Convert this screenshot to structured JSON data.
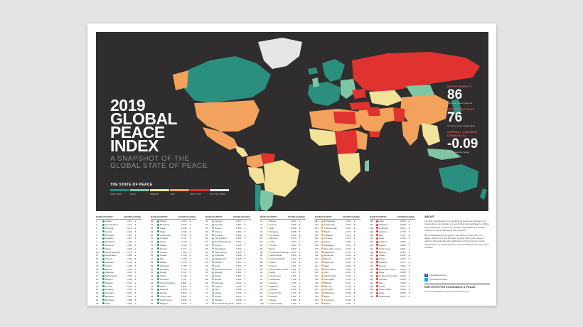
{
  "poster": {
    "title_lines": [
      "2019",
      "GLOBAL",
      "PEACE",
      "INDEX"
    ],
    "subtitle_lines": [
      "A SNAPSHOT OF THE",
      "GLOBAL STATE OF PEACE"
    ],
    "legend_title": "THE STATE OF PEACE",
    "legend": [
      {
        "label": "VERY HIGH",
        "color": "#2a8f7f"
      },
      {
        "label": "HIGH",
        "color": "#7ec6a4"
      },
      {
        "label": "MEDIUM",
        "color": "#f3e29a"
      },
      {
        "label": "LOW",
        "color": "#f2a25c"
      },
      {
        "label": "VERY LOW",
        "color": "#e0322e"
      },
      {
        "label": "NOT INCLUDED",
        "color": "#e6e6e6"
      }
    ]
  },
  "stats": [
    {
      "heading": "IMPROVEMENTS",
      "value": "86",
      "note": "countries' peace improved"
    },
    {
      "heading": "DETERIORATIONS",
      "value": "76",
      "note": "countries' peace deteriorated"
    },
    {
      "heading": "OVERALL AVERAGE CHANGE (%)",
      "value": "-0.09",
      "note": "overall average change"
    }
  ],
  "table": {
    "headers": {
      "rank": "RANK",
      "country": "COUNTRY",
      "score": "SCORE",
      "change": "CHANGE"
    },
    "columns": [
      [
        [
          "1",
          "Iceland",
          "1.072"
        ],
        [
          "2",
          "New Zealand",
          "1.221"
        ],
        [
          "3",
          "Portugal",
          "1.274"
        ],
        [
          "4",
          "Austria",
          "1.291"
        ],
        [
          "5",
          "Denmark",
          "1.316"
        ],
        [
          "6",
          "Canada",
          "1.327"
        ],
        [
          "7",
          "Singapore",
          "1.347"
        ],
        [
          "8",
          "Slovenia",
          "1.355"
        ],
        [
          "9",
          "Japan",
          "1.369"
        ],
        [
          "10",
          "Czech Republic",
          "1.375"
        ],
        [
          "11",
          "Switzerland",
          "1.383"
        ],
        [
          "12",
          "Ireland",
          "1.390"
        ],
        [
          "13",
          "Australia",
          "1.419"
        ],
        [
          "14",
          "Finland",
          "1.488"
        ],
        [
          "15",
          "Bhutan",
          "1.506"
        ],
        [
          "16",
          "Malaysia",
          "1.529"
        ],
        [
          "17",
          "Netherlands",
          "1.530"
        ],
        [
          "18",
          "Belgium",
          "1.533"
        ],
        [
          "19",
          "Sweden",
          "1.533"
        ],
        [
          "20",
          "Norway",
          "1.536"
        ],
        [
          "21",
          "Hungary",
          "1.540"
        ],
        [
          "22",
          "Germany",
          "1.547"
        ],
        [
          "23",
          "Mauritius",
          "1.562"
        ],
        [
          "24",
          "Romania",
          "1.566"
        ],
        [
          "25",
          "Chile",
          "1.634"
        ]
      ],
      [
        [
          "26",
          "Poland",
          "1.654"
        ],
        [
          "27",
          "Botswana",
          "1.676"
        ],
        [
          "28",
          "Qatar",
          "1.696"
        ],
        [
          "29",
          "Spain",
          "1.699"
        ],
        [
          "30",
          "Costa Rica",
          "1.706"
        ],
        [
          "31",
          "Uruguay",
          "1.711"
        ],
        [
          "32",
          "Latvia",
          "1.718"
        ],
        [
          "33",
          "Taiwan",
          "1.725"
        ],
        [
          "34",
          "Estonia",
          "1.727"
        ],
        [
          "35",
          "Croatia",
          "1.729"
        ],
        [
          "36",
          "Kuwait",
          "1.739"
        ],
        [
          "37",
          "Italy",
          "1.754"
        ],
        [
          "38",
          "Malawi",
          "1.779"
        ],
        [
          "39",
          "Indonesia",
          "1.785"
        ],
        [
          "40",
          "Mongolia",
          "1.790"
        ],
        [
          "41",
          "Kuwait",
          "1.791"
        ],
        [
          "42",
          "Ghana",
          "1.792"
        ],
        [
          "43",
          "Lithuania",
          "1.797"
        ],
        [
          "44",
          "United Kingdom",
          "1.801"
        ],
        [
          "45",
          "Ghana",
          "1.807"
        ],
        [
          "46",
          "Panama",
          "1.816"
        ],
        [
          "47",
          "Zambia",
          "1.819"
        ],
        [
          "48",
          "Timor-Leste",
          "1.821"
        ],
        [
          "49",
          "South Korea",
          "1.829"
        ],
        [
          "50",
          "Bulgaria",
          "1.830"
        ]
      ],
      [
        [
          "51",
          "Vietnam",
          "1.877"
        ],
        [
          "52",
          "Senegal",
          "1.862"
        ],
        [
          "53",
          "Greece",
          "1.866"
        ],
        [
          "54",
          "France",
          "1.892"
        ],
        [
          "55",
          "Namibia",
          "1.893"
        ],
        [
          "56",
          "The Gambia",
          "1.896"
        ],
        [
          "57",
          "North Macedonia",
          "1.907"
        ],
        [
          "58",
          "Cyprus",
          "1.914"
        ],
        [
          "59",
          "Kazakhstan",
          "1.932"
        ],
        [
          "60",
          "Sierra Leone",
          "1.936"
        ],
        [
          "61",
          "Argentina",
          "1.939"
        ],
        [
          "62",
          "Madagascar",
          "1.945"
        ],
        [
          "63",
          "Moldova",
          "1.957"
        ],
        [
          "64",
          "Oman",
          "1.953"
        ],
        [
          "65",
          "Equatorial Guinea",
          "1.958"
        ],
        [
          "66",
          "Ecuador",
          "1.981"
        ],
        [
          "67",
          "Serbia",
          "1.987"
        ],
        [
          "68",
          "Bosnia",
          "2.000"
        ],
        [
          "69",
          "Tanzania",
          "2.011"
        ],
        [
          "70",
          "Angola",
          "2.025"
        ],
        [
          "71",
          "Peru",
          "2.016"
        ],
        [
          "72",
          "Liberia",
          "2.030"
        ],
        [
          "73",
          "Jordan",
          "2.034"
        ],
        [
          "74",
          "Jamaica",
          "2.038"
        ],
        [
          "75",
          "Dominican Republic",
          "2.044"
        ]
      ],
      [
        [
          "76",
          "Bolivia",
          "2.044"
        ],
        [
          "77",
          "Guinea",
          "2.059"
        ],
        [
          "78",
          "Haiti",
          "2.066"
        ],
        [
          "79",
          "Paraguay",
          "2.068"
        ],
        [
          "80",
          "Cambodia",
          "2.069"
        ],
        [
          "81",
          "Morocco",
          "2.070"
        ],
        [
          "82",
          "Cuba",
          "2.073"
        ],
        [
          "83",
          "Tunisia",
          "2.080"
        ],
        [
          "84",
          "Benin",
          "2.082"
        ],
        [
          "85",
          "Trinidad and Tobago",
          "2.093"
        ],
        [
          "86",
          "Mozambique",
          "2.099"
        ],
        [
          "87",
          "Kyrgyz Republic",
          "2.102"
        ],
        [
          "88",
          "Gabon",
          "2.111"
        ],
        [
          "89",
          "Kosovo",
          "2.113"
        ],
        [
          "90",
          "Papua New Guinea",
          "2.118"
        ],
        [
          "91",
          "Nepal",
          "2.127"
        ],
        [
          "92",
          "Montenegro",
          "2.131"
        ],
        [
          "93",
          "Uzbekistan",
          "2.138"
        ],
        [
          "94",
          "Georgia",
          "2.145"
        ],
        [
          "95",
          "Tajikistan",
          "2.151"
        ],
        [
          "96",
          "Uganda",
          "2.160"
        ],
        [
          "97",
          "Cote d'Ivoire",
          "2.176"
        ],
        [
          "98",
          "Eswatini",
          "2.181"
        ],
        [
          "99",
          "Algeria",
          "2.189"
        ],
        [
          "100",
          "Turkmenistan",
          "2.194"
        ]
      ],
      [
        [
          "101",
          "El Salvador",
          "2.262"
        ],
        [
          "102",
          "Guatemala",
          "2.264"
        ],
        [
          "103",
          "Turkmenistan",
          "2.267"
        ],
        [
          "104",
          "Brazil",
          "2.271"
        ],
        [
          "105",
          "Thailand",
          "2.274"
        ],
        [
          "106",
          "Armenia",
          "2.278"
        ],
        [
          "107",
          "Kenya",
          "2.284"
        ],
        [
          "108",
          "Nicaragua",
          "2.312"
        ],
        [
          "109",
          "Rep of the Congo",
          "2.323"
        ],
        [
          "110",
          "Mauritania",
          "2.332"
        ],
        [
          "111",
          "Honduras",
          "2.341"
        ],
        [
          "112",
          "Belarus",
          "2.342"
        ],
        [
          "113",
          "Myanmar",
          "2.393"
        ],
        [
          "114",
          "Niger",
          "2.397"
        ],
        [
          "115",
          "South Africa",
          "2.399"
        ],
        [
          "116",
          "USA",
          "2.401"
        ],
        [
          "117",
          "Saudi Arabia",
          "2.403"
        ],
        [
          "118",
          "Azerbaijan",
          "2.425"
        ],
        [
          "119",
          "Bahrain",
          "2.437"
        ],
        [
          "120",
          "Burundi",
          "2.443"
        ],
        [
          "121",
          "Sri Lanka",
          "2.451"
        ],
        [
          "122",
          "Philippines",
          "2.459"
        ],
        [
          "123",
          "Egypt",
          "2.475"
        ],
        [
          "124",
          "Cameroon",
          "2.483"
        ],
        [
          "125",
          "Eritrea",
          "2.496"
        ]
      ],
      [
        [
          "126",
          "India",
          "2.605"
        ],
        [
          "127",
          "Palestine",
          "2.608"
        ],
        [
          "128",
          "Colombia",
          "2.661"
        ],
        [
          "129",
          "Lebanon",
          "2.778"
        ],
        [
          "130",
          "Mali",
          "2.791"
        ],
        [
          "131",
          "Israel",
          "2.795"
        ],
        [
          "132",
          "Lebanon",
          "2.800"
        ],
        [
          "133",
          "Nigeria",
          "2.898"
        ],
        [
          "134",
          "North Korea",
          "2.921"
        ],
        [
          "135",
          "Ukraine",
          "2.950"
        ],
        [
          "136",
          "Sudan",
          "2.995"
        ],
        [
          "137",
          "Turkey",
          "3.015"
        ],
        [
          "138",
          "Pakistan",
          "3.072"
        ],
        [
          "139",
          "Russia",
          "3.093"
        ],
        [
          "140",
          "Rep of the Congo",
          "3.218"
        ],
        [
          "141",
          "Libya",
          "3.285"
        ],
        [
          "142",
          "Central African Rep",
          "3.332"
        ],
        [
          "143",
          "Somalia",
          "3.300"
        ],
        [
          "144",
          "Iraq",
          "3.369"
        ],
        [
          "145",
          "Yemen",
          "3.412"
        ],
        [
          "146",
          "South Sudan",
          "3.526"
        ],
        [
          "147",
          "Syria",
          "3.566"
        ],
        [
          "148",
          "Afghanistan",
          "3.574"
        ]
      ]
    ]
  },
  "about": {
    "heading": "ABOUT",
    "para1": "The GPI is developed by the Institute for Economics & Peace, an independent, non-partisan, non-profit think tank dedicated to shifting the world's focus to peace as a positive, achievable and tangible measure of human well-being and progress.",
    "para2": "IEP is headquartered in Sydney, with offices in New York, The Hague, Mexico City and Brussels. It works with a wide range of partners internationally and collaborates with intergovernmental organisations on measuring and communicating the economic value of peace.",
    "facebook": "/globalpeaceindex",
    "twitter": "@GlobPeaceIndex",
    "institute": "INSTITUTE FOR ECONOMICS & PEACE",
    "sites": "economicsandpeace.org | visionofhumanity.org"
  }
}
